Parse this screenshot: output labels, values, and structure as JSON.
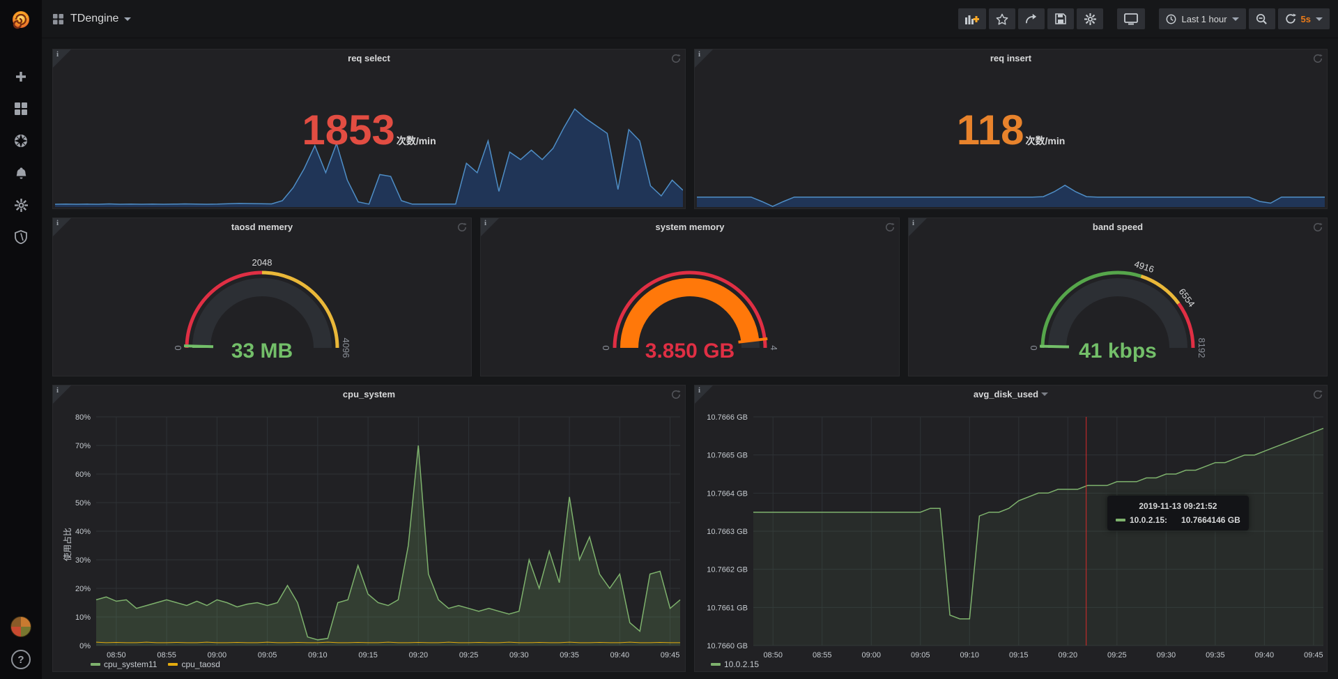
{
  "topbar": {
    "dashboard_title": "TDengine",
    "time_range": "Last 1 hour",
    "refresh_interval": "5s"
  },
  "icons": {
    "sidebar": [
      "grafana-logo",
      "create-plus",
      "dashboards-grid",
      "explore-compass",
      "alerting-bell",
      "configuration-gear",
      "admin-shield",
      "user-avatar",
      "help-circle"
    ],
    "toolbar": [
      "add-panel",
      "star",
      "share",
      "save",
      "settings-gear",
      "tv-mode-monitor",
      "clock",
      "caret-down",
      "zoom-out-magnifier",
      "refresh"
    ],
    "panel": [
      "panel-info",
      "panel-refresh-spinner"
    ]
  },
  "colors": {
    "red": "#e24d42",
    "orange": "#e8832c",
    "green": "#73bf69",
    "yellow": "#eab839",
    "gauge_ring_red": "#e02f44",
    "gauge_ring_yellow": "#eab839",
    "gauge_ring_green": "#56a64b",
    "gauge_bar_orange": "#ff780a",
    "blue_line": "#4f8ec6",
    "blue_fill": "rgba(31,96,196,0.32)",
    "green_line": "#7eb26d",
    "green_fill": "rgba(126,178,109,0.20)",
    "disk_fill": "rgba(126,178,109,0.08)",
    "yellow_line": "#e5ac0e",
    "cursor_red": "#d92b2b",
    "accent_orange": "#eb7b18"
  },
  "panels": {
    "req_select": {
      "title": "req select",
      "value": "1853",
      "unit": "次数/min"
    },
    "req_insert": {
      "title": "req insert",
      "value": "118",
      "unit": "次数/min"
    },
    "taosd_memery": {
      "title": "taosd memery",
      "value": "33 MB"
    },
    "system_memory": {
      "title": "system memory",
      "value": "3.850 GB"
    },
    "band_speed": {
      "title": "band speed",
      "value": "41 kbps"
    },
    "cpu_system": {
      "title": "cpu_system",
      "ylabel": "使用占比",
      "legend": [
        "cpu_system11",
        "cpu_taosd"
      ]
    },
    "avg_disk_used": {
      "title": "avg_disk_used",
      "legend": [
        "10.0.2.15"
      ],
      "tooltip": {
        "time": "2019-11-13 09:21:52",
        "series": "10.0.2.15:",
        "value": "10.7664146 GB"
      }
    }
  },
  "chart_data": [
    {
      "id": "req_select",
      "type": "area",
      "title": "req select",
      "unit": "次数/min",
      "current_value": 1853,
      "ylim": [
        0,
        2700
      ],
      "x_start": "08:48",
      "x_end": "09:46",
      "x_step_minutes": 1,
      "values": [
        55,
        60,
        55,
        60,
        55,
        65,
        55,
        60,
        55,
        60,
        55,
        60,
        65,
        60,
        55,
        60,
        70,
        80,
        75,
        70,
        65,
        150,
        500,
        1000,
        1620,
        900,
        1680,
        700,
        120,
        60,
        850,
        800,
        150,
        60,
        60,
        60,
        60,
        60,
        1150,
        900,
        1750,
        400,
        1450,
        1250,
        1500,
        1250,
        1550,
        2100,
        2600,
        2350,
        2150,
        1950,
        450,
        2050,
        1750,
        550,
        280,
        700,
        430
      ]
    },
    {
      "id": "req_insert",
      "type": "area",
      "title": "req insert",
      "unit": "次数/min",
      "current_value": 118,
      "ylim": [
        0,
        1250
      ],
      "x_start": "08:48",
      "x_end": "09:46",
      "x_step_minutes": 1,
      "values": [
        115,
        115,
        115,
        115,
        115,
        115,
        60,
        0,
        60,
        115,
        115,
        115,
        115,
        115,
        115,
        115,
        115,
        115,
        115,
        115,
        115,
        115,
        115,
        115,
        115,
        115,
        115,
        115,
        115,
        115,
        115,
        115,
        120,
        180,
        260,
        180,
        120,
        115,
        115,
        115,
        115,
        115,
        115,
        115,
        115,
        115,
        115,
        115,
        115,
        115,
        115,
        115,
        60,
        40,
        115,
        115,
        115,
        115,
        115
      ]
    },
    {
      "id": "taosd_memery",
      "type": "gauge",
      "title": "taosd memery",
      "min": 0,
      "max": 4096,
      "value": 33,
      "display": "33 MB",
      "value_color_key": "green",
      "ticks": [
        {
          "v": 0,
          "label": "0"
        },
        {
          "v": 2048,
          "label": "2048"
        },
        {
          "v": 4096,
          "label": "4096"
        }
      ],
      "segments": [
        {
          "from": 0,
          "to": 2048,
          "color_key": "gauge_ring_red"
        },
        {
          "from": 2048,
          "to": 4096,
          "color_key": "gauge_ring_yellow"
        }
      ],
      "bar_color_key": "green"
    },
    {
      "id": "system_memory",
      "type": "gauge",
      "title": "system memory",
      "min": 0,
      "max": 4,
      "value": 3.85,
      "display": "3.850 GB",
      "value_color_key": "gauge_ring_red",
      "ticks": [
        {
          "v": 0,
          "label": "0"
        },
        {
          "v": 4,
          "label": "4"
        }
      ],
      "segments": [
        {
          "from": 0,
          "to": 4,
          "color_key": "gauge_ring_red"
        }
      ],
      "bar_color_key": "gauge_bar_orange"
    },
    {
      "id": "band_speed",
      "type": "gauge",
      "title": "band speed",
      "min": 0,
      "max": 8192,
      "value": 41,
      "display": "41 kbps",
      "value_color_key": "green",
      "ticks": [
        {
          "v": 0,
          "label": "0"
        },
        {
          "v": 4916,
          "label": "4916"
        },
        {
          "v": 6554,
          "label": "6554"
        },
        {
          "v": 8192,
          "label": "8192"
        }
      ],
      "segments": [
        {
          "from": 0,
          "to": 4916,
          "color_key": "gauge_ring_green"
        },
        {
          "from": 4916,
          "to": 6554,
          "color_key": "gauge_ring_yellow"
        },
        {
          "from": 6554,
          "to": 8192,
          "color_key": "gauge_ring_red"
        }
      ],
      "bar_color_key": "green"
    },
    {
      "id": "cpu_system",
      "type": "line",
      "title": "cpu_system",
      "ylabel": "使用占比",
      "ylim": [
        0,
        80
      ],
      "grid": true,
      "legend_position": "bottom-left",
      "yticks": [
        {
          "v": 0,
          "label": "0%"
        },
        {
          "v": 10,
          "label": "10%"
        },
        {
          "v": 20,
          "label": "20%"
        },
        {
          "v": 30,
          "label": "30%"
        },
        {
          "v": 40,
          "label": "40%"
        },
        {
          "v": 50,
          "label": "50%"
        },
        {
          "v": 60,
          "label": "60%"
        },
        {
          "v": 70,
          "label": "70%"
        },
        {
          "v": 80,
          "label": "80%"
        }
      ],
      "x_start": "08:48",
      "x_domain_minutes": 58,
      "xticks": [
        {
          "m": 2,
          "label": "08:50"
        },
        {
          "m": 7,
          "label": "08:55"
        },
        {
          "m": 12,
          "label": "09:00"
        },
        {
          "m": 17,
          "label": "09:05"
        },
        {
          "m": 22,
          "label": "09:10"
        },
        {
          "m": 27,
          "label": "09:15"
        },
        {
          "m": 32,
          "label": "09:20"
        },
        {
          "m": 37,
          "label": "09:25"
        },
        {
          "m": 42,
          "label": "09:30"
        },
        {
          "m": 47,
          "label": "09:35"
        },
        {
          "m": 52,
          "label": "09:40"
        },
        {
          "m": 57,
          "label": "09:45"
        }
      ],
      "series": [
        {
          "name": "cpu_system11",
          "color_key": "green_line",
          "fill_key": "green_fill",
          "width": 1.5,
          "values": [
            16,
            17,
            15.5,
            16,
            13,
            14,
            15,
            16,
            15,
            14,
            15.5,
            14,
            16,
            15,
            13.5,
            14.5,
            15,
            14,
            15,
            21,
            15,
            3,
            2,
            2.5,
            15,
            16,
            28,
            18,
            15,
            14,
            16,
            35,
            70,
            25,
            16,
            13,
            14,
            13,
            12,
            13,
            12,
            11,
            12,
            30,
            20,
            33,
            22,
            52,
            30,
            38,
            25,
            20,
            25,
            8,
            5,
            25,
            26,
            13,
            16
          ]
        },
        {
          "name": "cpu_taosd",
          "color_key": "yellow_line",
          "width": 1,
          "values": [
            1.2,
            1,
            1.1,
            1,
            1,
            1.2,
            1,
            1,
            1.1,
            1,
            1,
            1.2,
            1,
            1,
            1.1,
            1,
            1,
            1.2,
            1,
            1,
            1.1,
            1,
            1,
            1.2,
            1,
            1,
            1.1,
            1,
            1,
            1.2,
            1,
            1,
            1.1,
            1,
            1,
            1.2,
            1,
            1,
            1.1,
            1,
            1,
            1.2,
            1,
            1,
            1.1,
            1,
            1,
            1.2,
            1,
            1,
            1.1,
            1,
            1,
            1.2,
            1,
            1,
            1.1,
            1,
            1
          ]
        }
      ]
    },
    {
      "id": "avg_disk_used",
      "type": "line",
      "title": "avg_disk_used",
      "ylim": [
        10.766,
        10.7666
      ],
      "grid": true,
      "legend_position": "bottom-left",
      "yticks": [
        {
          "v": 10.766,
          "label": "10.7660 GB"
        },
        {
          "v": 10.7661,
          "label": "10.7661 GB"
        },
        {
          "v": 10.7662,
          "label": "10.7662 GB"
        },
        {
          "v": 10.7663,
          "label": "10.7663 GB"
        },
        {
          "v": 10.7664,
          "label": "10.7664 GB"
        },
        {
          "v": 10.7665,
          "label": "10.7665 GB"
        },
        {
          "v": 10.7666,
          "label": "10.7666 GB"
        }
      ],
      "x_start": "08:48",
      "x_domain_minutes": 58,
      "xticks": [
        {
          "m": 2,
          "label": "08:50"
        },
        {
          "m": 7,
          "label": "08:55"
        },
        {
          "m": 12,
          "label": "09:00"
        },
        {
          "m": 17,
          "label": "09:05"
        },
        {
          "m": 22,
          "label": "09:10"
        },
        {
          "m": 27,
          "label": "09:15"
        },
        {
          "m": 32,
          "label": "09:20"
        },
        {
          "m": 37,
          "label": "09:25"
        },
        {
          "m": 42,
          "label": "09:30"
        },
        {
          "m": 47,
          "label": "09:35"
        },
        {
          "m": 52,
          "label": "09:40"
        },
        {
          "m": 57,
          "label": "09:45"
        }
      ],
      "cursor": {
        "time": "09:21:52",
        "minute": 33.87,
        "color_key": "cursor_red"
      },
      "series": [
        {
          "name": "10.0.2.15",
          "color_key": "green_line",
          "fill_key": "disk_fill",
          "width": 1.5,
          "values": [
            10.76635,
            10.76635,
            10.76635,
            10.76635,
            10.76635,
            10.76635,
            10.76635,
            10.76635,
            10.76635,
            10.76635,
            10.76635,
            10.76635,
            10.76635,
            10.76635,
            10.76635,
            10.76635,
            10.76635,
            10.76635,
            10.76636,
            10.76636,
            10.76608,
            10.76607,
            10.76607,
            10.76634,
            10.76635,
            10.76635,
            10.76636,
            10.76638,
            10.76639,
            10.7664,
            10.7664,
            10.76641,
            10.76641,
            10.76641,
            10.76642,
            10.76642,
            10.76642,
            10.76643,
            10.76643,
            10.76643,
            10.76644,
            10.76644,
            10.76645,
            10.76645,
            10.76646,
            10.76646,
            10.76647,
            10.76648,
            10.76648,
            10.76649,
            10.7665,
            10.7665,
            10.76651,
            10.76652,
            10.76653,
            10.76654,
            10.76655,
            10.76656,
            10.76657
          ]
        }
      ]
    }
  ]
}
